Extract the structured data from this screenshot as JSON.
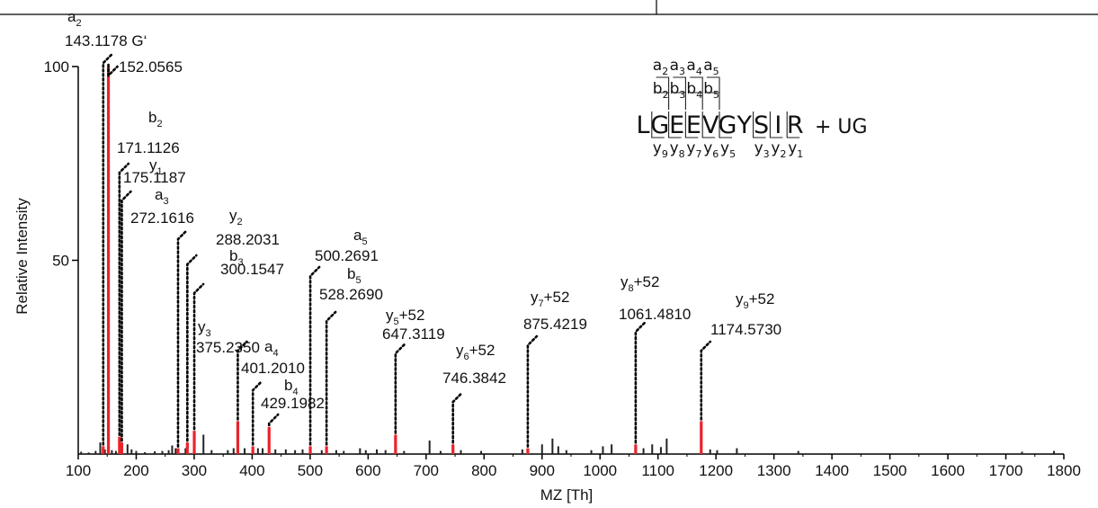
{
  "chart_data": {
    "type": "bar",
    "xlabel": "MZ [Th]",
    "ylabel": "Relative Intensity",
    "xlim": [
      100,
      1800
    ],
    "ylim": [
      0,
      100
    ],
    "xticks": [
      100,
      200,
      300,
      400,
      500,
      600,
      700,
      800,
      900,
      1000,
      1100,
      1200,
      1300,
      1400,
      1500,
      1600,
      1700,
      1800
    ],
    "yticks": [
      50,
      100
    ],
    "grid": false,
    "colors": {
      "assigned": "#e8232a",
      "unassigned": "#222222",
      "leader": "#000000"
    },
    "annotated_peaks": [
      {
        "ion": "a",
        "sub": "2",
        "suffix": "",
        "mz": 143.1178,
        "label": "143.1178 G‘",
        "intensity": 2
      },
      {
        "ion": "",
        "sub": "",
        "suffix": "",
        "mz": 152.0565,
        "label": "152.0565",
        "intensity": 100
      },
      {
        "ion": "b",
        "sub": "2",
        "suffix": "",
        "mz": 171.1126,
        "label": "171.1126",
        "intensity": 4.5
      },
      {
        "ion": "y",
        "sub": "1",
        "suffix": "",
        "mz": 175.1187,
        "label": "175.1187",
        "intensity": 3
      },
      {
        "ion": "a",
        "sub": "3",
        "suffix": "",
        "mz": 272.1616,
        "label": "272.1616",
        "intensity": 1.5
      },
      {
        "ion": "y",
        "sub": "2",
        "suffix": "",
        "mz": 288.2031,
        "label": "288.2031",
        "intensity": 3
      },
      {
        "ion": "b",
        "sub": "3",
        "suffix": "",
        "mz": 300.1547,
        "label": "300.1547",
        "intensity": 6
      },
      {
        "ion": "y",
        "sub": "3",
        "suffix": "",
        "mz": 375.235,
        "label": "375.2350",
        "intensity": 8.5
      },
      {
        "ion": "a",
        "sub": "4",
        "suffix": "",
        "mz": 401.201,
        "label": "401.2010",
        "intensity": 2
      },
      {
        "ion": "b",
        "sub": "4",
        "suffix": "",
        "mz": 429.1982,
        "label": "429.1982",
        "intensity": 7
      },
      {
        "ion": "a",
        "sub": "5",
        "suffix": "",
        "mz": 500.2691,
        "label": "500.2691",
        "intensity": 2
      },
      {
        "ion": "b",
        "sub": "5",
        "suffix": "",
        "mz": 528.269,
        "label": "528.2690",
        "intensity": 2
      },
      {
        "ion": "y",
        "sub": "5",
        "suffix": "+52",
        "mz": 647.3119,
        "label": "647.3119",
        "intensity": 5
      },
      {
        "ion": "y",
        "sub": "6",
        "suffix": "+52",
        "mz": 746.3842,
        "label": "746.3842",
        "intensity": 2.5
      },
      {
        "ion": "y",
        "sub": "7",
        "suffix": "+52",
        "mz": 875.4219,
        "label": "875.4219",
        "intensity": 1.5
      },
      {
        "ion": "y",
        "sub": "8",
        "suffix": "+52",
        "mz": 1061.481,
        "label": "1061.4810",
        "intensity": 2.5
      },
      {
        "ion": "y",
        "sub": "9",
        "suffix": "+52",
        "mz": 1174.573,
        "label": "1174.5730",
        "intensity": 8.5
      }
    ],
    "unassigned_peaks": [
      {
        "mz": 105,
        "intensity": 0.6
      },
      {
        "mz": 118,
        "intensity": 0.4
      },
      {
        "mz": 130,
        "intensity": 0.8
      },
      {
        "mz": 138,
        "intensity": 3
      },
      {
        "mz": 146,
        "intensity": 1.2
      },
      {
        "mz": 158,
        "intensity": 1
      },
      {
        "mz": 165,
        "intensity": 0.8
      },
      {
        "mz": 185,
        "intensity": 2.5
      },
      {
        "mz": 192,
        "intensity": 1.2
      },
      {
        "mz": 200,
        "intensity": 0.8
      },
      {
        "mz": 215,
        "intensity": 0.5
      },
      {
        "mz": 232,
        "intensity": 0.7
      },
      {
        "mz": 245,
        "intensity": 0.8
      },
      {
        "mz": 256,
        "intensity": 1
      },
      {
        "mz": 262,
        "intensity": 2.2
      },
      {
        "mz": 268,
        "intensity": 1.5
      },
      {
        "mz": 285,
        "intensity": 1.5
      },
      {
        "mz": 316,
        "intensity": 5
      },
      {
        "mz": 330,
        "intensity": 1
      },
      {
        "mz": 358,
        "intensity": 1
      },
      {
        "mz": 368,
        "intensity": 1.5
      },
      {
        "mz": 387,
        "intensity": 1.5
      },
      {
        "mz": 410,
        "intensity": 1.5
      },
      {
        "mz": 418,
        "intensity": 1.5
      },
      {
        "mz": 440,
        "intensity": 1.2
      },
      {
        "mz": 458,
        "intensity": 1.2
      },
      {
        "mz": 474,
        "intensity": 1
      },
      {
        "mz": 487,
        "intensity": 1.2
      },
      {
        "mz": 520,
        "intensity": 1
      },
      {
        "mz": 545,
        "intensity": 1
      },
      {
        "mz": 558,
        "intensity": 0.8
      },
      {
        "mz": 586,
        "intensity": 1.5
      },
      {
        "mz": 596,
        "intensity": 1
      },
      {
        "mz": 615,
        "intensity": 1.2
      },
      {
        "mz": 630,
        "intensity": 1
      },
      {
        "mz": 662,
        "intensity": 0.8
      },
      {
        "mz": 706,
        "intensity": 3.5
      },
      {
        "mz": 725,
        "intensity": 0.8
      },
      {
        "mz": 760,
        "intensity": 1
      },
      {
        "mz": 795,
        "intensity": 0.8
      },
      {
        "mz": 866,
        "intensity": 1.2
      },
      {
        "mz": 900,
        "intensity": 2.5
      },
      {
        "mz": 918,
        "intensity": 4
      },
      {
        "mz": 928,
        "intensity": 2
      },
      {
        "mz": 942,
        "intensity": 1
      },
      {
        "mz": 985,
        "intensity": 1
      },
      {
        "mz": 1005,
        "intensity": 2
      },
      {
        "mz": 1020,
        "intensity": 2.5
      },
      {
        "mz": 1075,
        "intensity": 1.5
      },
      {
        "mz": 1090,
        "intensity": 2.5
      },
      {
        "mz": 1105,
        "intensity": 1.8
      },
      {
        "mz": 1115,
        "intensity": 4
      },
      {
        "mz": 1190,
        "intensity": 1.2
      },
      {
        "mz": 1202,
        "intensity": 1
      },
      {
        "mz": 1236,
        "intensity": 1.5
      },
      {
        "mz": 1342,
        "intensity": 0.8
      },
      {
        "mz": 1728,
        "intensity": 0.6
      },
      {
        "mz": 1783,
        "intensity": 0.8
      }
    ],
    "peptide": {
      "sequence": [
        "L",
        "G",
        "E",
        "E",
        "V",
        "G",
        "Y",
        "S",
        "I",
        "R"
      ],
      "modification": "+ UG",
      "a_ions": [
        2,
        3,
        4,
        5
      ],
      "b_ions": [
        2,
        3,
        4,
        5
      ],
      "y_ions": [
        9,
        8,
        7,
        6,
        5,
        3,
        2,
        1
      ]
    }
  }
}
